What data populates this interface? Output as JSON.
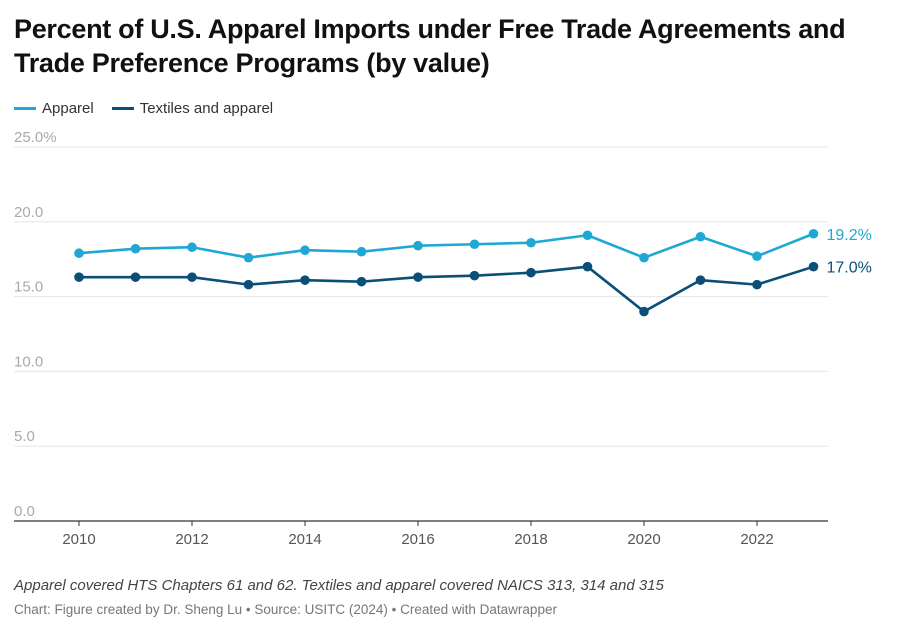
{
  "title": "Percent of U.S. Apparel Imports under Free Trade Agreements and Trade Preference Programs (by value)",
  "note": "Apparel covered HTS Chapters 61 and 62. Textiles and apparel covered NAICS 313, 314 and 315",
  "source": "Chart: Figure created by Dr. Sheng Lu • Source: USITC (2024) • Created with Datawrapper",
  "chart_data": {
    "type": "line",
    "title": "Percent of U.S. Apparel Imports under Free Trade Agreements and Trade Preference Programs (by value)",
    "x": [
      2010,
      2011,
      2012,
      2013,
      2014,
      2015,
      2016,
      2017,
      2018,
      2019,
      2020,
      2021,
      2022,
      2023
    ],
    "xticks": [
      "2010",
      "2012",
      "2014",
      "2016",
      "2018",
      "2020",
      "2022"
    ],
    "yticks": [
      "25.0%",
      "20.0",
      "15.0",
      "10.0",
      "5.0",
      "0.0"
    ],
    "ylim": [
      0,
      25
    ],
    "grid": "horizontal",
    "legend": "top-left",
    "series": [
      {
        "name": "Apparel",
        "color": "#1fa8d4",
        "end_label": "19.2%",
        "values": [
          17.9,
          18.2,
          18.3,
          17.6,
          18.1,
          18.0,
          18.4,
          18.5,
          18.6,
          19.1,
          17.6,
          19.0,
          17.7,
          19.2
        ]
      },
      {
        "name": "Textiles and apparel",
        "color": "#0b4f78",
        "end_label": "17.0%",
        "values": [
          16.3,
          16.3,
          16.3,
          15.8,
          16.1,
          16.0,
          16.3,
          16.4,
          16.6,
          17.0,
          14.0,
          16.1,
          15.8,
          17.0
        ]
      }
    ]
  }
}
